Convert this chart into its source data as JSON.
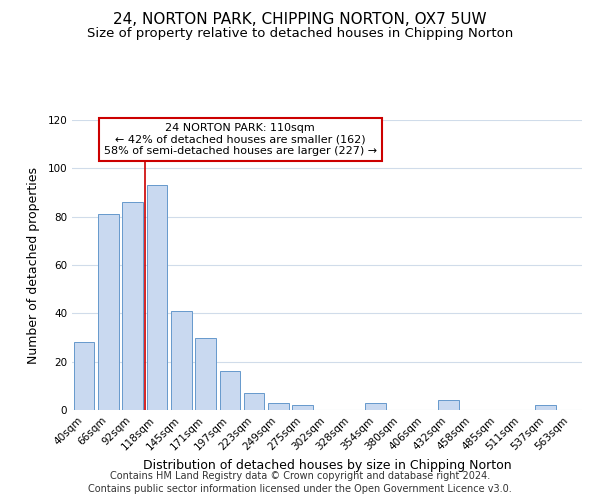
{
  "title": "24, NORTON PARK, CHIPPING NORTON, OX7 5UW",
  "subtitle": "Size of property relative to detached houses in Chipping Norton",
  "xlabel": "Distribution of detached houses by size in Chipping Norton",
  "ylabel": "Number of detached properties",
  "bar_labels": [
    "40sqm",
    "66sqm",
    "92sqm",
    "118sqm",
    "145sqm",
    "171sqm",
    "197sqm",
    "223sqm",
    "249sqm",
    "275sqm",
    "302sqm",
    "328sqm",
    "354sqm",
    "380sqm",
    "406sqm",
    "432sqm",
    "458sqm",
    "485sqm",
    "511sqm",
    "537sqm",
    "563sqm"
  ],
  "bar_values": [
    28,
    81,
    86,
    93,
    41,
    30,
    16,
    7,
    3,
    2,
    0,
    0,
    3,
    0,
    0,
    4,
    0,
    0,
    0,
    2,
    0
  ],
  "bar_color": "#c9d9f0",
  "bar_edge_color": "#6699cc",
  "vline_color": "#cc0000",
  "vline_x": 2.5,
  "annotation_title": "24 NORTON PARK: 110sqm",
  "annotation_line1": "← 42% of detached houses are smaller (162)",
  "annotation_line2": "58% of semi-detached houses are larger (227) →",
  "annotation_box_color": "#ffffff",
  "annotation_box_edge": "#cc0000",
  "ylim": [
    0,
    120
  ],
  "yticks": [
    0,
    20,
    40,
    60,
    80,
    100,
    120
  ],
  "footer1": "Contains HM Land Registry data © Crown copyright and database right 2024.",
  "footer2": "Contains public sector information licensed under the Open Government Licence v3.0.",
  "title_fontsize": 11,
  "subtitle_fontsize": 9.5,
  "axis_label_fontsize": 9,
  "tick_fontsize": 7.5,
  "annotation_fontsize": 8,
  "footer_fontsize": 7,
  "background_color": "#ffffff",
  "grid_color": "#d0dcea"
}
